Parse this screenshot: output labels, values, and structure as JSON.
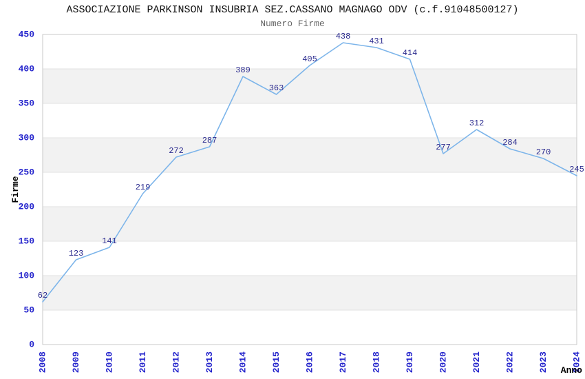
{
  "chart_data": {
    "type": "line",
    "title": "ASSOCIAZIONE PARKINSON INSUBRIA SEZ.CASSANO MAGNAGO ODV (c.f.91048500127)",
    "subtitle": "Numero Firme",
    "xlabel": "Anno",
    "ylabel": "Firme",
    "categories": [
      "2008",
      "2009",
      "2010",
      "2011",
      "2012",
      "2013",
      "2014",
      "2015",
      "2016",
      "2017",
      "2018",
      "2019",
      "2020",
      "2021",
      "2022",
      "2023",
      "2024"
    ],
    "values": [
      62,
      123,
      141,
      219,
      272,
      287,
      389,
      363,
      405,
      438,
      431,
      414,
      277,
      312,
      284,
      270,
      245
    ],
    "ylim": [
      0,
      450
    ],
    "ytick_step": 50,
    "yticks": [
      0,
      50,
      100,
      150,
      200,
      250,
      300,
      350,
      400,
      450
    ],
    "grid": "horizontal-bands-alternating",
    "legend": "none",
    "point_labels_visible": true,
    "colors": {
      "line": "#7DB5EA",
      "point_label": "#2B2B8F",
      "tick_label": "#2424CC",
      "axis_title": "#000000",
      "title": "#111111",
      "subtitle": "#666666",
      "band": "#F2F2F2",
      "gridline": "#E2E2E2",
      "frame": "#C8C8C8",
      "background": "#FFFFFF"
    }
  }
}
